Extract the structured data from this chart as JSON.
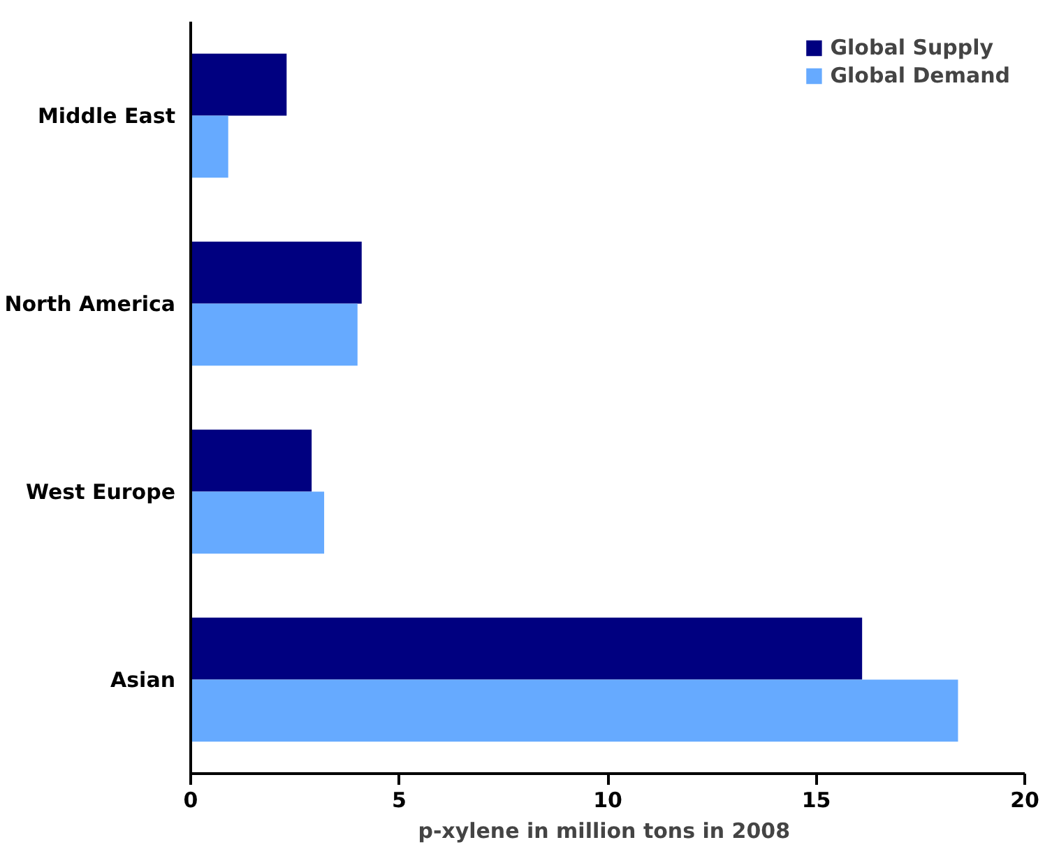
{
  "chart_data": {
    "type": "bar",
    "orientation": "horizontal",
    "xlabel": "p-xylene  in million tons in 2008",
    "categories": [
      "Middle East",
      "North America",
      "West Europe",
      "Asian"
    ],
    "series": [
      {
        "name": "Global Supply",
        "color": "#000080",
        "values": [
          2.3,
          4.1,
          2.9,
          16.1
        ]
      },
      {
        "name": "Global Demand",
        "color": "#66aaff",
        "values": [
          0.9,
          4.0,
          3.2,
          18.4
        ]
      }
    ],
    "xlim": [
      0,
      20
    ],
    "xticks": [
      0,
      5,
      10,
      15,
      20
    ],
    "grid": false,
    "legend": "top right"
  }
}
